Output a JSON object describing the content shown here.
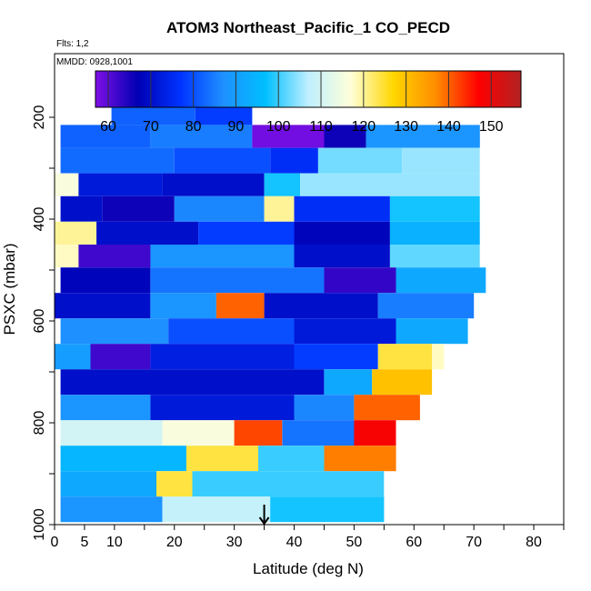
{
  "chart_data": {
    "type": "heatmap",
    "title": "ATOM3 Northeast_Pacific_1 CO_PECD",
    "flights_label": "Flts: 1,2",
    "dates_label": "MMDD: 0928,1001",
    "xlabel": "Latitude (deg N)",
    "ylabel": "PSXC (mbar)",
    "xlim": [
      0,
      85
    ],
    "ylim": [
      1000,
      75
    ],
    "x_ticks": [
      0,
      5,
      10,
      20,
      30,
      40,
      50,
      60,
      70,
      80
    ],
    "x_ticks_unlabeled": [
      15,
      25,
      35,
      45,
      55,
      65,
      75,
      85
    ],
    "y_ticks": [
      200,
      400,
      600,
      800,
      1000
    ],
    "y_ticks_unlabeled": [
      300,
      500,
      700,
      900
    ],
    "colorbar": {
      "range": [
        57,
        157
      ],
      "ticks": [
        60,
        70,
        80,
        90,
        100,
        110,
        120,
        130,
        140,
        150
      ],
      "colors": [
        "#7F0FE6",
        "#0000B3",
        "#0033FF",
        "#1E90FF",
        "#00BFFF",
        "#BFEFFF",
        "#FFFFD9",
        "#FFD700",
        "#FF8C00",
        "#FF0000",
        "#B22222"
      ]
    },
    "marker": {
      "latitude": 35,
      "pressure": 1000,
      "symbol": "down-arrow"
    },
    "rows": [
      {
        "p": [
          170,
          215
        ],
        "segments": [
          [
            9.5,
            23.5,
            82
          ],
          [
            23.5,
            33,
            78
          ]
        ]
      },
      {
        "p": [
          215,
          260
        ],
        "segments": [
          [
            1,
            16,
            82
          ],
          [
            16,
            33,
            85
          ],
          [
            33,
            45,
            58
          ],
          [
            45,
            52,
            66
          ],
          [
            52,
            71,
            88
          ]
        ]
      },
      {
        "p": [
          260,
          310
        ],
        "segments": [
          [
            1,
            20,
            83
          ],
          [
            20,
            36,
            80
          ],
          [
            36,
            44,
            76
          ],
          [
            44,
            58,
            103
          ],
          [
            58,
            71,
            105
          ]
        ]
      },
      {
        "p": [
          310,
          355
        ],
        "segments": [
          [
            0,
            4,
            116
          ],
          [
            4,
            18,
            72
          ],
          [
            18,
            35,
            70
          ],
          [
            35,
            41,
            98
          ],
          [
            41,
            71,
            105
          ]
        ]
      },
      {
        "p": [
          355,
          405
        ],
        "segments": [
          [
            1,
            8,
            70
          ],
          [
            8,
            20,
            66
          ],
          [
            20,
            35,
            86
          ],
          [
            35,
            40,
            120
          ],
          [
            40,
            56,
            76
          ],
          [
            56,
            71,
            98
          ]
        ]
      },
      {
        "p": [
          405,
          450
        ],
        "segments": [
          [
            0,
            7,
            120
          ],
          [
            7,
            24,
            70
          ],
          [
            24,
            40,
            78
          ],
          [
            40,
            56,
            68
          ],
          [
            56,
            71,
            94
          ]
        ]
      },
      {
        "p": [
          450,
          495
        ],
        "segments": [
          [
            0,
            4,
            118
          ],
          [
            4,
            16,
            62
          ],
          [
            16,
            40,
            88
          ],
          [
            40,
            56,
            70
          ],
          [
            56,
            71,
            102
          ]
        ]
      },
      {
        "p": [
          495,
          545
        ],
        "segments": [
          [
            1,
            16,
            68
          ],
          [
            16,
            45,
            84
          ],
          [
            45,
            57,
            63
          ],
          [
            57,
            72,
            92
          ]
        ]
      },
      {
        "p": [
          545,
          595
        ],
        "segments": [
          [
            0,
            16,
            70
          ],
          [
            16,
            27,
            88
          ],
          [
            27,
            35,
            140
          ],
          [
            35,
            54,
            70
          ],
          [
            54,
            70,
            85
          ]
        ]
      },
      {
        "p": [
          595,
          645
        ],
        "segments": [
          [
            1,
            19,
            87
          ],
          [
            19,
            40,
            80
          ],
          [
            40,
            57,
            72
          ],
          [
            57,
            69,
            92
          ]
        ]
      },
      {
        "p": [
          645,
          695
        ],
        "segments": [
          [
            0,
            6,
            90
          ],
          [
            6,
            16,
            62
          ],
          [
            16,
            40,
            73
          ],
          [
            40,
            54,
            78
          ],
          [
            54,
            63,
            124
          ],
          [
            63,
            65,
            118
          ]
        ]
      },
      {
        "p": [
          695,
          745
        ],
        "segments": [
          [
            1,
            22,
            70
          ],
          [
            22,
            45,
            70
          ],
          [
            45,
            53,
            92
          ],
          [
            53,
            63,
            130
          ]
        ]
      },
      {
        "p": [
          745,
          795
        ],
        "segments": [
          [
            1,
            16,
            88
          ],
          [
            16,
            40,
            72
          ],
          [
            40,
            50,
            86
          ],
          [
            50,
            61,
            140
          ]
        ]
      },
      {
        "p": [
          795,
          845
        ],
        "segments": [
          [
            1,
            18,
            110
          ],
          [
            18,
            30,
            116
          ],
          [
            30,
            38,
            142
          ],
          [
            38,
            50,
            84
          ],
          [
            50,
            57,
            148
          ]
        ]
      },
      {
        "p": [
          845,
          895
        ],
        "segments": [
          [
            1,
            22,
            95
          ],
          [
            22,
            34,
            124
          ],
          [
            34,
            45,
            100
          ],
          [
            45,
            57,
            138
          ]
        ]
      },
      {
        "p": [
          895,
          945
        ],
        "segments": [
          [
            1,
            17,
            92
          ],
          [
            17,
            23,
            124
          ],
          [
            23,
            55,
            100
          ]
        ]
      },
      {
        "p": [
          945,
          995
        ],
        "segments": [
          [
            1,
            18,
            88
          ],
          [
            18,
            36,
            108
          ],
          [
            36,
            55,
            98
          ]
        ]
      }
    ]
  }
}
